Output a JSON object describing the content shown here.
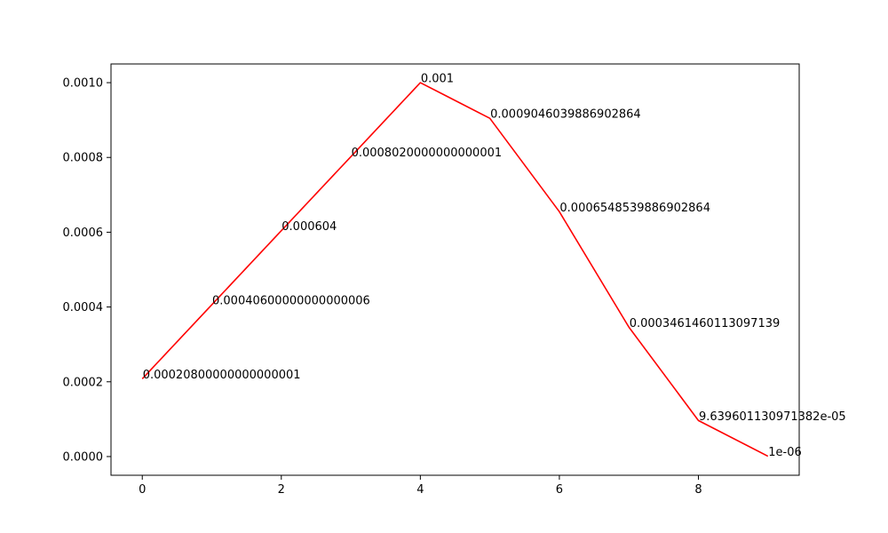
{
  "chart_data": {
    "type": "line",
    "title": "",
    "xlabel": "",
    "ylabel": "",
    "xlim": [
      -0.45,
      9.45
    ],
    "ylim": [
      -5e-05,
      0.00105
    ],
    "grid": false,
    "x_ticks": [
      "0",
      "2",
      "4",
      "6",
      "8"
    ],
    "x_tick_values": [
      0,
      2,
      4,
      6,
      8
    ],
    "y_ticks": [
      "0.0000",
      "0.0002",
      "0.0004",
      "0.0006",
      "0.0008",
      "0.0010"
    ],
    "y_tick_values": [
      0,
      0.0002,
      0.0004,
      0.0006,
      0.0008,
      0.001
    ],
    "series": [
      {
        "color": "#ff0000",
        "x": [
          0,
          1,
          2,
          3,
          4,
          5,
          6,
          7,
          8,
          9
        ],
        "y": [
          0.00020800000000000001,
          0.00040600000000000006,
          0.000604,
          0.0008020000000000001,
          0.001,
          0.0009046039886902864,
          0.0006548539886902864,
          0.0003461460113097139,
          9.639601130971382e-05,
          1e-06
        ]
      }
    ],
    "annotations": [
      "0.00020800000000000001",
      "0.00040600000000000006",
      "0.000604",
      "0.0008020000000000001",
      "0.001",
      "0.0009046039886902864",
      "0.0006548539886902864",
      "0.0003461460113097139",
      "9.639601130971382e-05",
      "1e-06"
    ]
  }
}
